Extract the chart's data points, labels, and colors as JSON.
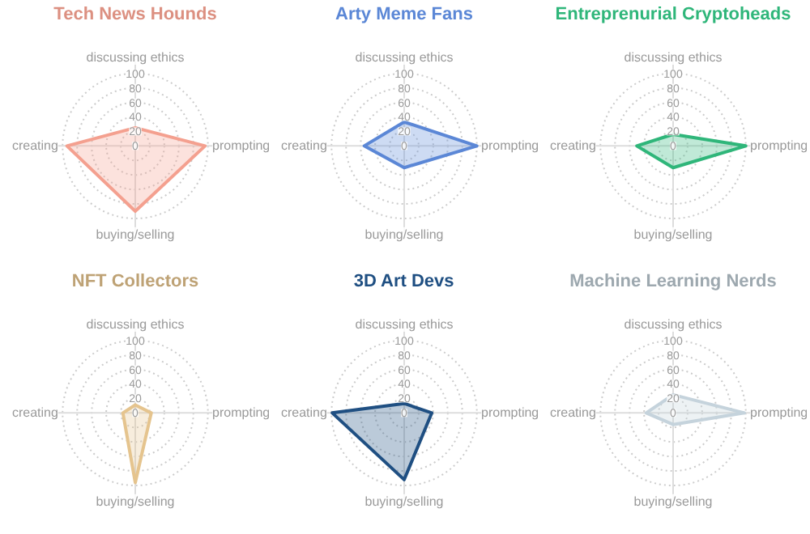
{
  "chart_data": [
    {
      "type": "radar",
      "title": "Tech News Hounds",
      "categories": [
        "discussing ethics",
        "prompting",
        "buying/selling",
        "creating"
      ],
      "ylim": [
        0,
        100
      ],
      "yticks": [
        0,
        20,
        40,
        60,
        80,
        100
      ],
      "series": [
        {
          "color": "#f4a08f",
          "values": [
            25,
            96,
            90,
            94
          ]
        }
      ]
    },
    {
      "type": "radar",
      "title": "Arty Meme Fans",
      "categories": [
        "discussing ethics",
        "prompting",
        "buying/selling",
        "creating"
      ],
      "ylim": [
        0,
        100
      ],
      "yticks": [
        0,
        20,
        40,
        60,
        80,
        100
      ],
      "series": [
        {
          "color": "#5b87d6",
          "values": [
            33,
            100,
            30,
            55
          ]
        }
      ]
    },
    {
      "type": "radar",
      "title": "Entreprenurial Cryptoheads",
      "categories": [
        "discussing ethics",
        "prompting",
        "buying/selling",
        "creating"
      ],
      "ylim": [
        0,
        100
      ],
      "yticks": [
        0,
        20,
        40,
        60,
        80,
        100
      ],
      "series": [
        {
          "color": "#2fb67a",
          "values": [
            16,
            100,
            30,
            50
          ]
        }
      ]
    },
    {
      "type": "radar",
      "title": "NFT Collectors",
      "categories": [
        "discussing ethics",
        "prompting",
        "buying/selling",
        "creating"
      ],
      "ylim": [
        0,
        100
      ],
      "yticks": [
        0,
        20,
        40,
        60,
        80,
        100
      ],
      "series": [
        {
          "color": "#e5c48e",
          "values": [
            11,
            22,
            96,
            17
          ]
        }
      ]
    },
    {
      "type": "radar",
      "title": "3D Art Devs",
      "categories": [
        "discussing ethics",
        "prompting",
        "buying/selling",
        "creating"
      ],
      "ylim": [
        0,
        100
      ],
      "yticks": [
        0,
        20,
        40,
        60,
        80,
        100
      ],
      "series": [
        {
          "color": "#1f4f82",
          "values": [
            13,
            38,
            92,
            99
          ]
        }
      ]
    },
    {
      "type": "radar",
      "title": "Machine Learning Nerds",
      "categories": [
        "discussing ethics",
        "prompting",
        "buying/selling",
        "creating"
      ],
      "ylim": [
        0,
        100
      ],
      "yticks": [
        0,
        20,
        40,
        60,
        80,
        100
      ],
      "series": [
        {
          "color": "#c5d3dc",
          "values": [
            25,
            98,
            16,
            37
          ]
        }
      ]
    }
  ]
}
